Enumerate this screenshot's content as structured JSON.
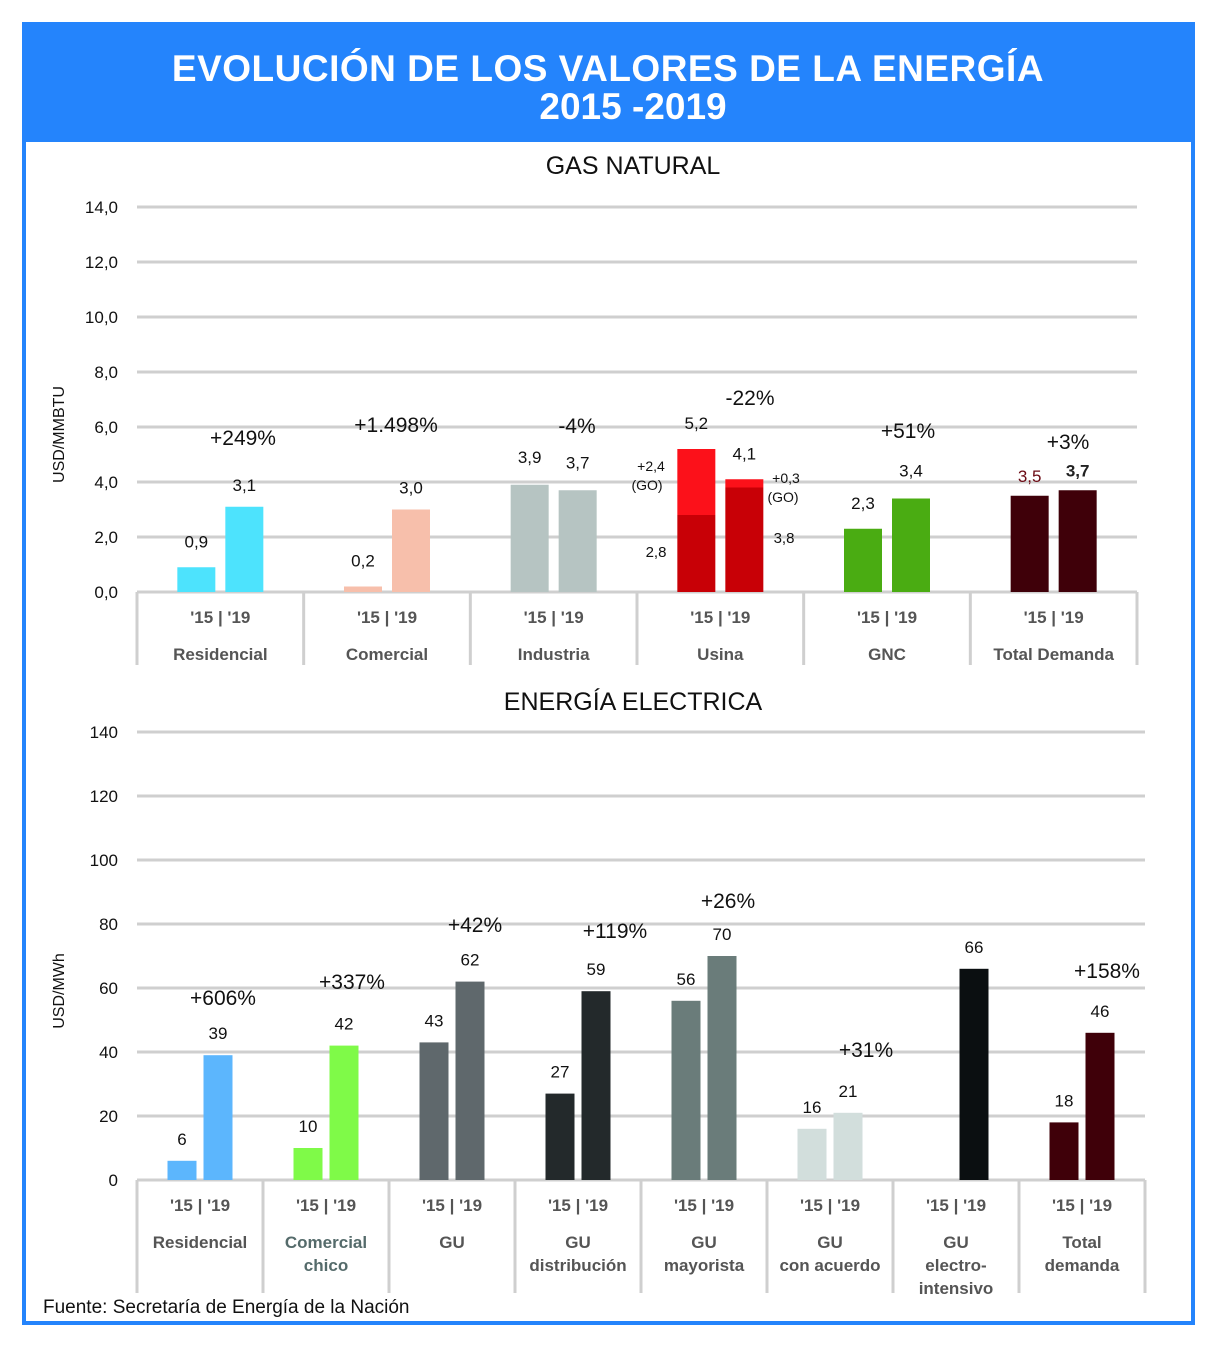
{
  "header": {
    "title_line1": "EVOLUCIÓN DE LOS VALORES DE LA ENERGÍA",
    "title_line2": "2015 -2019"
  },
  "source": "Fuente: Secretaría de Energía de la Nación",
  "colors": {
    "header_blue": "#2484fc",
    "grid": "#cfcfcf"
  },
  "chart_data": [
    {
      "type": "bar",
      "title": "GAS NATURAL",
      "ylabel": "USD/MMBTU",
      "xlabel": "",
      "ylim": [
        0,
        14
      ],
      "yticks": [
        "0,0",
        "2,0",
        "4,0",
        "6,0",
        "8,0",
        "10,0",
        "12,0",
        "14,0"
      ],
      "ytick_values": [
        0,
        2,
        4,
        6,
        8,
        10,
        12,
        14
      ],
      "grid": true,
      "period_label": "'15 | '19",
      "categories": [
        "Residencial",
        "Comercial",
        "Industria",
        "Usina",
        "GNC",
        "Total Demanda"
      ],
      "series": [
        {
          "name": "2015",
          "values": [
            0.9,
            0.2,
            3.9,
            5.2,
            2.3,
            3.5
          ],
          "labels": [
            "0,9",
            "0,2",
            "3,9",
            "5,2",
            "2,3",
            "3,5"
          ]
        },
        {
          "name": "2019",
          "values": [
            3.1,
            3.0,
            3.7,
            4.1,
            3.4,
            3.7
          ],
          "labels": [
            "3,1",
            "3,0",
            "3,7",
            "4,1",
            "3,4",
            "3,7"
          ]
        }
      ],
      "changes": [
        "+249%",
        "+1.498%",
        "-4%",
        "-22%",
        "+51%",
        "+3%"
      ],
      "bar_colors": [
        "#4de3fd",
        "#f7bfab",
        "#b6c4c2",
        "#c80006",
        "#4aac12",
        "#3f0009"
      ],
      "usina_stack": {
        "base_2015": 2.8,
        "base_2015_label": "2,8",
        "go_2015": 2.4,
        "go_2015_label": "+2,4",
        "go_2015_sub": "(GO)",
        "base_2019": 3.8,
        "base_2019_label": "3,8",
        "go_2019": 0.3,
        "go_2019_label": "+0,3",
        "go_2019_sub": "(GO)",
        "go_color": "#fc111a"
      }
    },
    {
      "type": "bar",
      "title": "ENERGÍA ELECTRICA",
      "ylabel": "USD/MWh",
      "xlabel": "",
      "ylim": [
        0,
        140
      ],
      "yticks": [
        "0",
        "20",
        "40",
        "60",
        "80",
        "100",
        "120",
        "140"
      ],
      "ytick_values": [
        0,
        20,
        40,
        60,
        80,
        100,
        120,
        140
      ],
      "grid": true,
      "period_label": "'15 | '19",
      "categories": [
        "Residencial",
        "Comercial chico",
        "GU",
        "GU distribución",
        "GU mayorista",
        "GU con acuerdo",
        "GU electro-intensivo",
        "Total demanda"
      ],
      "category_lines": [
        [
          "Residencial"
        ],
        [
          "Comercial",
          "chico"
        ],
        [
          "GU"
        ],
        [
          "GU",
          "distribución"
        ],
        [
          "GU",
          "mayorista"
        ],
        [
          "GU",
          "con acuerdo"
        ],
        [
          "GU",
          "electro-",
          "intensivo"
        ],
        [
          "Total",
          "demanda"
        ]
      ],
      "series": [
        {
          "name": "2015",
          "values": [
            6,
            10,
            43,
            27,
            56,
            16,
            null,
            18
          ],
          "labels": [
            "6",
            "10",
            "43",
            "27",
            "56",
            "16",
            "",
            "18"
          ]
        },
        {
          "name": "2019",
          "values": [
            39,
            42,
            62,
            59,
            70,
            21,
            66,
            46
          ],
          "labels": [
            "39",
            "42",
            "62",
            "59",
            "70",
            "21",
            "66",
            "46"
          ]
        }
      ],
      "changes": [
        "+606%",
        "+337%",
        "+42%",
        "+119%",
        "+26%",
        "+31%",
        "",
        "+158%"
      ],
      "bar_colors": [
        "#5cb6fd",
        "#7ffa48",
        "#5f686c",
        "#23292b",
        "#6a7c7a",
        "#d2dedc",
        "#0b0f11",
        "#3f0009"
      ]
    }
  ]
}
